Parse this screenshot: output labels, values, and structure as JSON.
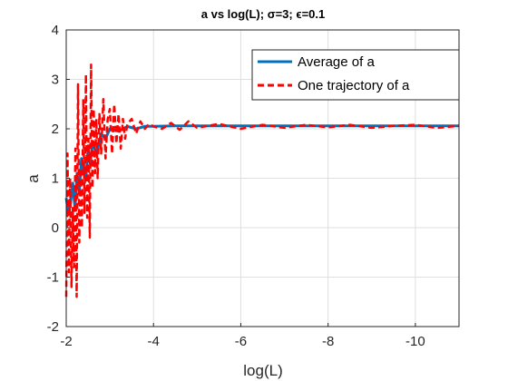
{
  "chart_data": {
    "type": "line",
    "title": "a vs log(L); σ=3; ϵ=0.1",
    "xlabel": "log(L)",
    "ylabel": "a",
    "xlim": [
      -2,
      -11
    ],
    "ylim": [
      -2,
      4
    ],
    "x_direction": "reverse",
    "xticks": [
      -2,
      -4,
      -6,
      -8,
      -10
    ],
    "xtick_labels": [
      "-2",
      "-4",
      "-6",
      "-8",
      "-10"
    ],
    "yticks": [
      -2,
      -1,
      0,
      1,
      2,
      3,
      4
    ],
    "ytick_labels": [
      "-2",
      "-1",
      "0",
      "1",
      "2",
      "3",
      "4"
    ],
    "grid": true,
    "legend_position": "top-right",
    "series": [
      {
        "name": "Average of a",
        "color": "#0072BD",
        "style": "solid",
        "x": [
          -2.0,
          -2.05,
          -2.1,
          -2.15,
          -2.2,
          -2.25,
          -2.3,
          -2.35,
          -2.4,
          -2.45,
          -2.5,
          -2.55,
          -2.6,
          -2.7,
          -2.8,
          -2.9,
          -3.0,
          -3.2,
          -3.4,
          -3.6,
          -3.8,
          -4.0,
          -4.5,
          -5.0,
          -6.0,
          -7.0,
          -8.0,
          -9.0,
          -10.0,
          -11.0
        ],
        "values": [
          0.6,
          0.3,
          0.5,
          0.9,
          0.4,
          1.1,
          0.7,
          1.4,
          1.2,
          1.0,
          1.6,
          1.3,
          1.7,
          1.5,
          1.9,
          1.8,
          2.0,
          1.95,
          2.05,
          2.0,
          2.05,
          2.05,
          2.06,
          2.06,
          2.06,
          2.06,
          2.06,
          2.06,
          2.06,
          2.06
        ]
      },
      {
        "name": "One trajectory of a",
        "color": "#FF0000",
        "style": "dashed",
        "x": [
          -2.0,
          -2.03,
          -2.06,
          -2.09,
          -2.12,
          -2.15,
          -2.18,
          -2.21,
          -2.24,
          -2.27,
          -2.3,
          -2.33,
          -2.36,
          -2.39,
          -2.42,
          -2.45,
          -2.48,
          -2.51,
          -2.54,
          -2.57,
          -2.6,
          -2.63,
          -2.66,
          -2.69,
          -2.72,
          -2.76,
          -2.8,
          -2.85,
          -2.9,
          -2.95,
          -3.0,
          -3.05,
          -3.1,
          -3.15,
          -3.2,
          -3.25,
          -3.3,
          -3.35,
          -3.4,
          -3.5,
          -3.6,
          -3.7,
          -3.8,
          -3.9,
          -4.0,
          -4.2,
          -4.4,
          -4.6,
          -4.8,
          -5.0,
          -5.5,
          -6.0,
          -6.5,
          -7.0,
          -7.5,
          -8.0,
          -8.5,
          -9.0,
          -9.5,
          -10.0,
          -10.5,
          -11.0
        ],
        "values": [
          -1.4,
          1.5,
          -0.9,
          1.0,
          -1.2,
          0.4,
          -0.8,
          1.6,
          -1.4,
          2.9,
          -0.3,
          1.2,
          0.0,
          2.6,
          0.3,
          3.1,
          0.2,
          1.8,
          -0.2,
          3.3,
          0.8,
          2.4,
          1.1,
          2.2,
          1.0,
          2.3,
          1.5,
          2.6,
          1.4,
          2.2,
          2.4,
          1.5,
          2.5,
          1.7,
          2.3,
          1.6,
          2.2,
          1.8,
          2.1,
          2.2,
          1.9,
          2.15,
          2.0,
          2.1,
          2.05,
          2.0,
          2.12,
          1.98,
          2.15,
          2.02,
          2.1,
          2.0,
          2.08,
          2.02,
          2.08,
          2.03,
          2.08,
          2.02,
          2.06,
          2.08,
          2.02,
          2.06
        ]
      }
    ]
  }
}
